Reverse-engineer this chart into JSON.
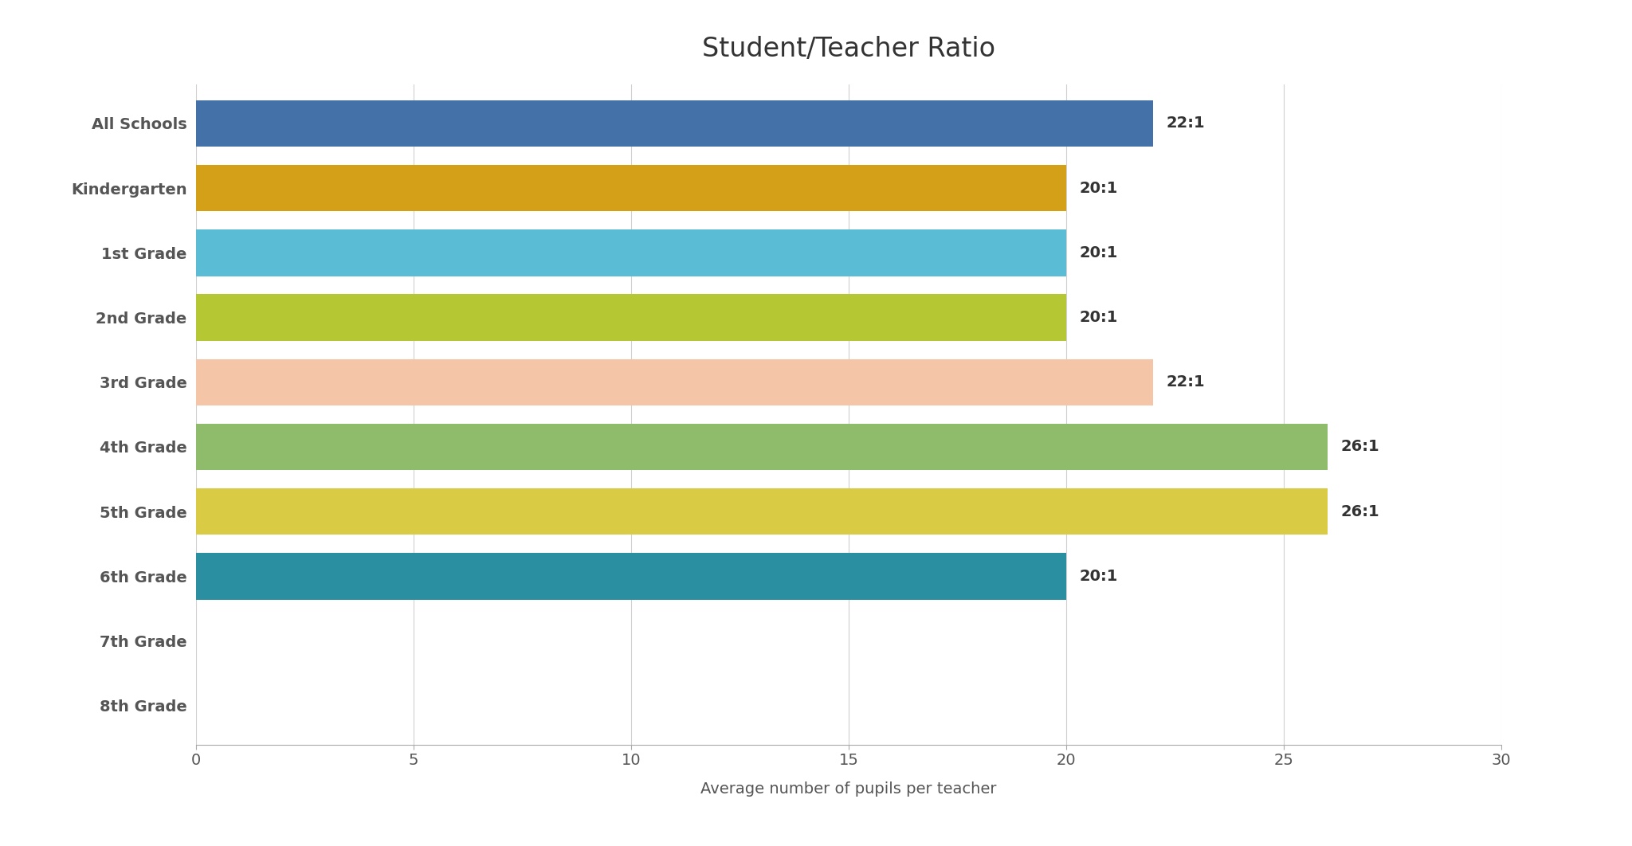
{
  "title": "Student/Teacher Ratio",
  "xlabel": "Average number of pupils per teacher",
  "categories": [
    "All Schools",
    "Kindergarten",
    "1st Grade",
    "2nd Grade",
    "3rd Grade",
    "4th Grade",
    "5th Grade",
    "6th Grade",
    "7th Grade",
    "8th Grade"
  ],
  "values": [
    22,
    20,
    20,
    20,
    22,
    26,
    26,
    20,
    0,
    0
  ],
  "labels": [
    "22:1",
    "20:1",
    "20:1",
    "20:1",
    "22:1",
    "26:1",
    "26:1",
    "20:1",
    "",
    ""
  ],
  "colors": [
    "#4472a8",
    "#d4a017",
    "#5bbcd6",
    "#b5c833",
    "#f5c5a8",
    "#8fbc6a",
    "#d9cc44",
    "#2a8fa0",
    null,
    null
  ],
  "xlim": [
    0,
    30
  ],
  "xticks": [
    0,
    5,
    10,
    15,
    20,
    25,
    30
  ],
  "background_color": "#ffffff",
  "grid_color": "#d0d0d0",
  "title_fontsize": 24,
  "label_fontsize": 14,
  "tick_fontsize": 14,
  "annotation_fontsize": 14,
  "bar_height": 0.72
}
